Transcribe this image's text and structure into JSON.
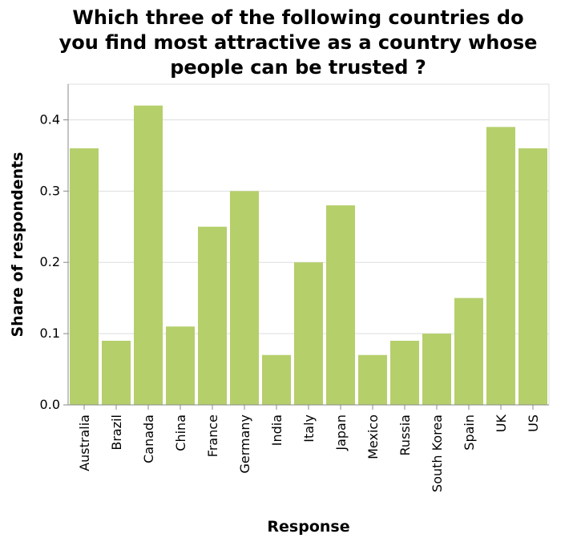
{
  "chart_data": {
    "type": "bar",
    "title_lines": [
      "Which three of the following countries do",
      "you find most attractive as a country whose",
      "people can be trusted ?"
    ],
    "xlabel": "Response",
    "ylabel": "Share of respondents",
    "categories": [
      "Australia",
      "Brazil",
      "Canada",
      "China",
      "France",
      "Germany",
      "India",
      "Italy",
      "Japan",
      "Mexico",
      "Russia",
      "South Korea",
      "Spain",
      "UK",
      "US"
    ],
    "values": [
      0.36,
      0.09,
      0.42,
      0.11,
      0.25,
      0.3,
      0.07,
      0.2,
      0.28,
      0.07,
      0.09,
      0.1,
      0.15,
      0.39,
      0.36
    ],
    "ylim": [
      0,
      0.45
    ],
    "yticks": [
      "0.0",
      "0.1",
      "0.2",
      "0.3",
      "0.4"
    ],
    "grid": true,
    "bar_color": "#b5cf6b"
  }
}
